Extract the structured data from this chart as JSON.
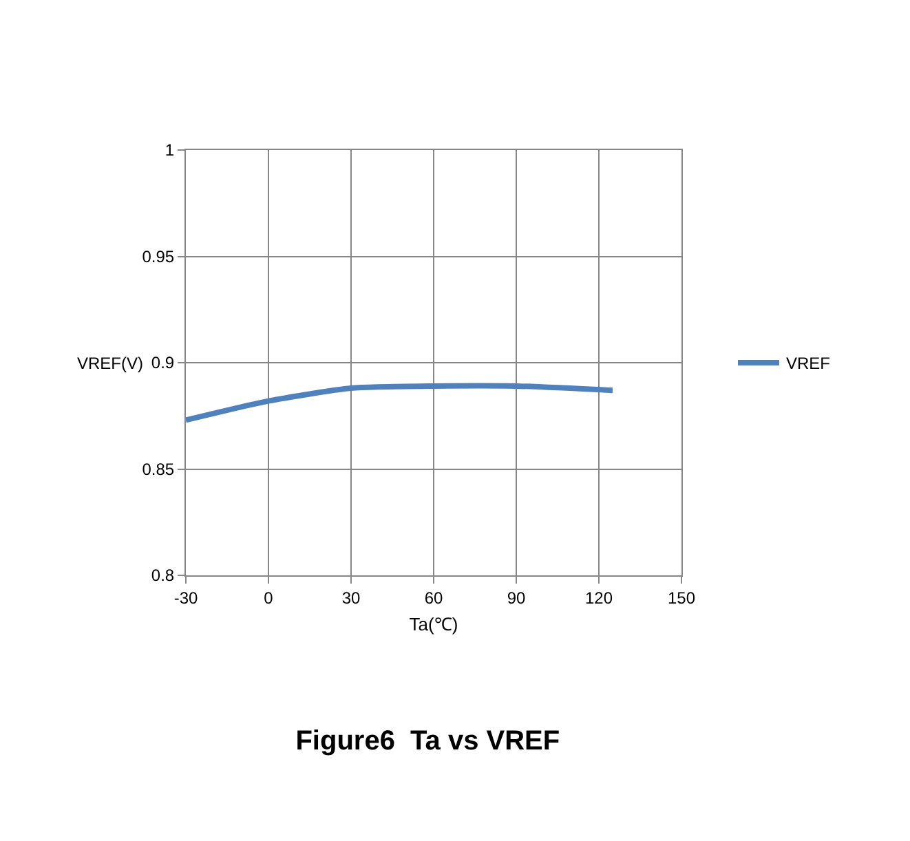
{
  "chart_data": {
    "type": "line",
    "title": "Figure6  Ta vs VREF",
    "xlabel": "Ta(℃)",
    "ylabel": "VREF(V)",
    "x": [
      -30,
      0,
      30,
      60,
      90,
      125
    ],
    "series": [
      {
        "name": "VREF",
        "color": "#4f81bd",
        "values": [
          0.873,
          0.882,
          0.888,
          0.889,
          0.889,
          0.887
        ]
      }
    ],
    "xlim": [
      -30,
      150
    ],
    "xticks": [
      -30,
      0,
      30,
      60,
      90,
      120,
      150
    ],
    "ylim": [
      0.8,
      1
    ],
    "yticks": [
      0.8,
      0.85,
      0.9,
      0.95,
      1
    ],
    "grid": true,
    "legend": "right",
    "marker": "none",
    "line_style": "solid"
  }
}
